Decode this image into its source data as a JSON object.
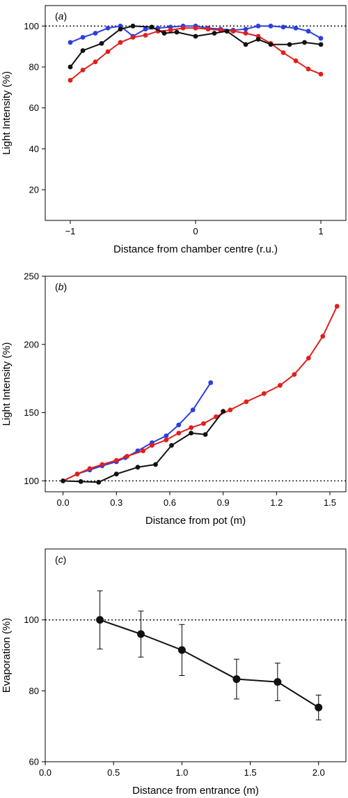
{
  "chart_data": [
    {
      "type": "line",
      "panel_label": "(a)",
      "xlabel": "Distance from chamber centre (r.u.)",
      "ylabel": "Light Intensity (%)",
      "xlim": [
        -1.2,
        1.2
      ],
      "ylim": [
        5,
        110
      ],
      "xticks": [
        -1,
        0,
        1
      ],
      "yticks": [
        20,
        40,
        60,
        80,
        100
      ],
      "reference_line": 100,
      "series": [
        {
          "color": "#2b3fe0",
          "x": [
            -1,
            -0.9,
            -0.8,
            -0.7,
            -0.6,
            -0.5,
            -0.4,
            -0.3,
            -0.2,
            -0.1,
            0,
            0.1,
            0.2,
            0.3,
            0.4,
            0.5,
            0.6,
            0.7,
            0.8,
            0.9,
            1
          ],
          "y": [
            92,
            94.5,
            96.5,
            99,
            100,
            95,
            98.5,
            99,
            99.5,
            100,
            100,
            99,
            98.5,
            98,
            98.5,
            100,
            100,
            99.5,
            99,
            97.5,
            94
          ]
        },
        {
          "color": "#e0201c",
          "x": [
            -1,
            -0.9,
            -0.8,
            -0.7,
            -0.6,
            -0.5,
            -0.4,
            -0.3,
            -0.2,
            -0.1,
            0,
            0.1,
            0.2,
            0.3,
            0.4,
            0.5,
            0.6,
            0.7,
            0.8,
            0.9,
            1
          ],
          "y": [
            73.5,
            78.5,
            82.5,
            87.5,
            92,
            94.5,
            95.5,
            97.5,
            98,
            99,
            99,
            98.5,
            98,
            97.5,
            96.5,
            95,
            91.5,
            87,
            83,
            79,
            76.5
          ]
        },
        {
          "color": "#111111",
          "x": [
            -1,
            -0.9,
            -0.75,
            -0.6,
            -0.5,
            -0.35,
            -0.25,
            -0.15,
            0,
            0.15,
            0.25,
            0.4,
            0.5,
            0.6,
            0.75,
            0.87,
            1
          ],
          "y": [
            80,
            88,
            91.5,
            98.5,
            100,
            99.5,
            96.5,
            97,
            95,
            96.5,
            97.5,
            91,
            93.5,
            91,
            91,
            92,
            91
          ]
        }
      ]
    },
    {
      "type": "line",
      "panel_label": "(b)",
      "xlabel": "Distance from pot (m)",
      "ylabel": "Light Intensity (%)",
      "xlim": [
        -0.1,
        1.59
      ],
      "ylim": [
        92,
        250
      ],
      "xticks": [
        0.0,
        0.3,
        0.6,
        0.9,
        1.2,
        1.5
      ],
      "yticks": [
        100,
        150,
        200,
        250
      ],
      "reference_line": 100,
      "series": [
        {
          "color": "#2b3fe0",
          "x": [
            0,
            0.08,
            0.15,
            0.22,
            0.3,
            0.35,
            0.42,
            0.5,
            0.58,
            0.65,
            0.73,
            0.83
          ],
          "y": [
            100,
            105,
            108,
            111,
            114,
            117,
            122,
            128,
            133,
            141,
            152,
            172
          ]
        },
        {
          "color": "#e0201c",
          "x": [
            0,
            0.08,
            0.15,
            0.22,
            0.3,
            0.36,
            0.45,
            0.5,
            0.58,
            0.65,
            0.72,
            0.79,
            0.86,
            0.94,
            1.03,
            1.13,
            1.22,
            1.3,
            1.38,
            1.46,
            1.54
          ],
          "y": [
            100,
            105,
            109,
            112,
            115,
            118,
            122,
            126,
            130,
            135,
            139,
            142,
            147,
            152,
            158,
            164,
            170,
            178,
            190,
            206,
            228
          ]
        },
        {
          "color": "#111111",
          "x": [
            0,
            0.1,
            0.2,
            0.3,
            0.42,
            0.52,
            0.61,
            0.72,
            0.8,
            0.9
          ],
          "y": [
            100,
            99.5,
            99,
            105,
            110,
            112,
            126,
            135,
            134,
            151
          ]
        }
      ]
    },
    {
      "type": "line",
      "panel_label": "(c)",
      "xlabel": "Distance from entrance (m)",
      "ylabel": "Evaporation (%)",
      "xlim": [
        0.0,
        2.2
      ],
      "ylim": [
        60,
        120
      ],
      "xticks": [
        0.0,
        0.5,
        1.0,
        1.5,
        2.0
      ],
      "yticks": [
        60,
        80,
        100
      ],
      "reference_line": 100,
      "series": [
        {
          "color": "#111111",
          "x": [
            0.4,
            0.7,
            1.0,
            1.4,
            1.7,
            2.0
          ],
          "y": [
            100,
            96,
            91.5,
            83.3,
            82.5,
            75.3
          ],
          "error": [
            8.2,
            6.5,
            7.2,
            5.6,
            5.3,
            3.5
          ]
        }
      ]
    }
  ]
}
